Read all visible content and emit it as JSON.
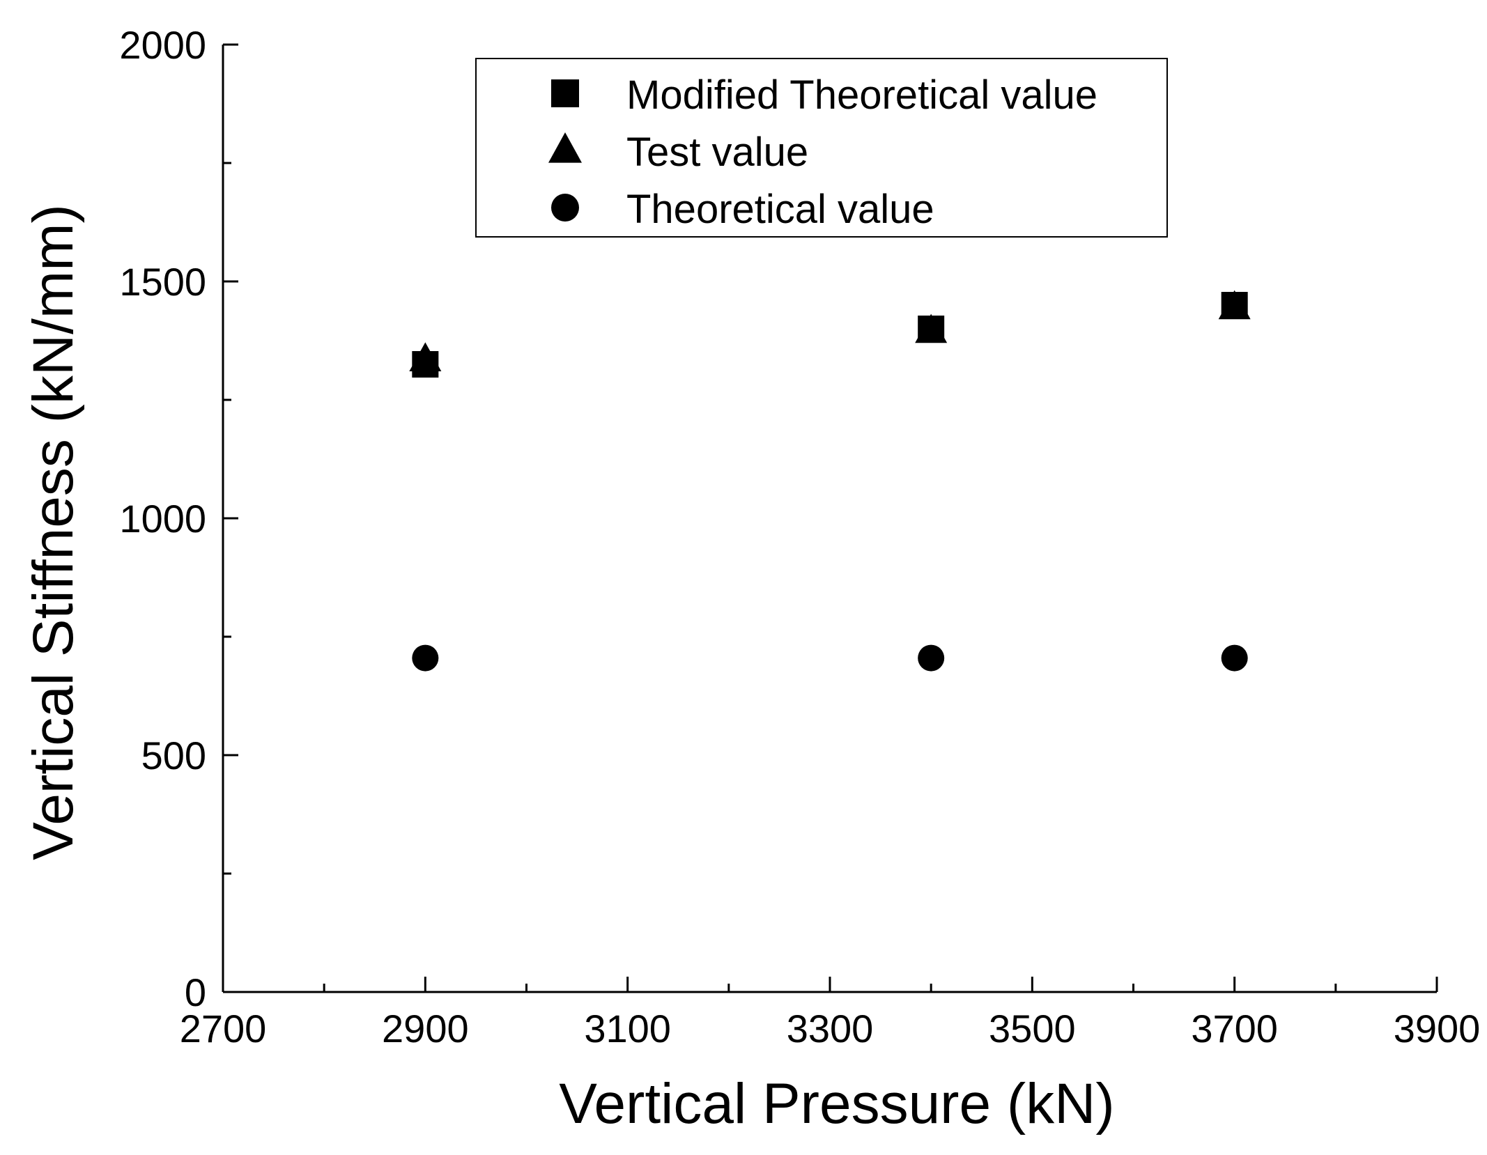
{
  "chart_data": {
    "type": "scatter",
    "title": "",
    "xlabel": "Vertical Pressure (kN)",
    "ylabel": "Vertical Stiffness (kN/mm)",
    "xlim": [
      2700,
      3900
    ],
    "ylim": [
      0,
      2000
    ],
    "xticks": [
      2700,
      2900,
      3100,
      3300,
      3500,
      3700,
      3900
    ],
    "yticks": [
      0,
      500,
      1000,
      1500,
      2000
    ],
    "xtick_labels": [
      "2700",
      "2900",
      "3100",
      "3300",
      "3500",
      "3700",
      "3900"
    ],
    "ytick_labels": [
      "0",
      "500",
      "1000",
      "1500",
      "2000"
    ],
    "grid": false,
    "legend_position": "top-center",
    "series": [
      {
        "name": "Modified Theoretical value",
        "marker": "square",
        "color": "#000000",
        "x": [
          2900,
          3400,
          3700
        ],
        "y": [
          1325,
          1400,
          1450
        ]
      },
      {
        "name": "Test value",
        "marker": "triangle",
        "color": "#000000",
        "x": [
          2900,
          3400,
          3700
        ],
        "y": [
          1335,
          1395,
          1445
        ]
      },
      {
        "name": "Theoretical value",
        "marker": "circle",
        "color": "#000000",
        "x": [
          2900,
          3400,
          3700
        ],
        "y": [
          705,
          705,
          705
        ]
      }
    ]
  }
}
